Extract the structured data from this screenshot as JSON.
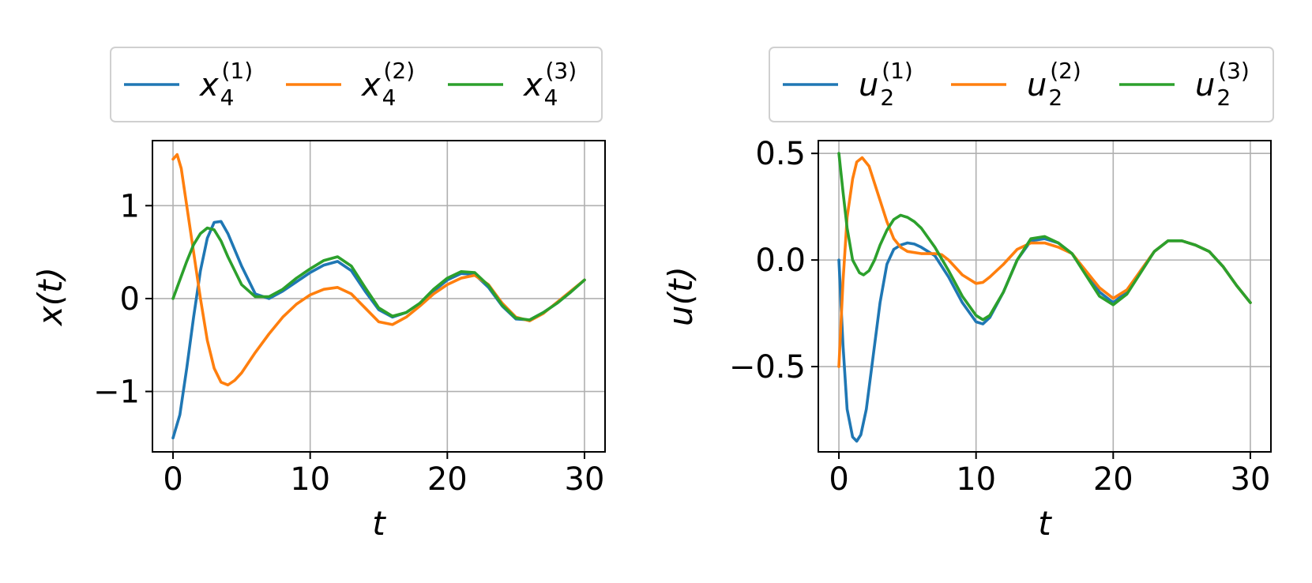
{
  "chart_data": [
    {
      "type": "line",
      "xlabel": "t",
      "ylabel": "x(t)",
      "xlim": [
        -1.5,
        31.5
      ],
      "ylim": [
        -1.65,
        1.7
      ],
      "xticks": [
        0,
        10,
        20,
        30
      ],
      "xtick_labels": [
        "0",
        "10",
        "20",
        "30"
      ],
      "yticks": [
        -1,
        0,
        1
      ],
      "ytick_labels": [
        "−1",
        "0",
        "1"
      ],
      "grid": true,
      "legend_placement": "top-center, outside",
      "legend_entries": [
        {
          "base": "x",
          "sub": "4",
          "sup": "(1)"
        },
        {
          "base": "x",
          "sub": "4",
          "sup": "(2)"
        },
        {
          "base": "x",
          "sub": "4",
          "sup": "(3)"
        }
      ],
      "series": [
        {
          "color": "#1f77b4",
          "x": [
            0,
            0.5,
            1,
            1.5,
            2,
            2.5,
            3,
            3.5,
            4,
            5,
            6,
            7,
            8,
            9,
            10,
            11,
            12,
            13,
            14,
            15,
            16,
            17,
            18,
            19,
            20,
            21,
            22,
            23,
            24,
            25,
            26,
            27,
            28,
            29,
            30
          ],
          "values": [
            -1.5,
            -1.25,
            -0.75,
            -0.2,
            0.3,
            0.65,
            0.82,
            0.83,
            0.7,
            0.35,
            0.05,
            0.0,
            0.08,
            0.18,
            0.28,
            0.36,
            0.4,
            0.3,
            0.08,
            -0.12,
            -0.2,
            -0.15,
            -0.05,
            0.08,
            0.2,
            0.27,
            0.26,
            0.12,
            -0.08,
            -0.22,
            -0.23,
            -0.15,
            -0.05,
            0.07,
            0.2
          ]
        },
        {
          "color": "#ff7f0e",
          "x": [
            0,
            0.3,
            0.6,
            1,
            1.5,
            2,
            2.5,
            3,
            3.5,
            4,
            4.5,
            5,
            6,
            7,
            8,
            9,
            10,
            11,
            12,
            13,
            14,
            15,
            16,
            17,
            18,
            19,
            20,
            21,
            22,
            23,
            24,
            25,
            26,
            27,
            28,
            29,
            30
          ],
          "values": [
            1.5,
            1.55,
            1.4,
            1.0,
            0.5,
            0.0,
            -0.45,
            -0.75,
            -0.9,
            -0.93,
            -0.88,
            -0.8,
            -0.58,
            -0.38,
            -0.2,
            -0.06,
            0.04,
            0.1,
            0.12,
            0.05,
            -0.1,
            -0.25,
            -0.28,
            -0.2,
            -0.08,
            0.05,
            0.15,
            0.22,
            0.25,
            0.15,
            -0.05,
            -0.2,
            -0.24,
            -0.16,
            -0.04,
            0.08,
            0.2
          ]
        },
        {
          "color": "#2ca02c",
          "x": [
            0,
            0.5,
            1,
            1.5,
            2,
            2.5,
            3,
            3.5,
            4,
            5,
            6,
            7,
            8,
            9,
            10,
            11,
            12,
            13,
            14,
            15,
            16,
            17,
            18,
            19,
            20,
            21,
            22,
            23,
            24,
            25,
            26,
            27,
            28,
            29,
            30
          ],
          "values": [
            0.0,
            0.2,
            0.4,
            0.58,
            0.7,
            0.76,
            0.74,
            0.62,
            0.45,
            0.15,
            0.02,
            0.02,
            0.1,
            0.22,
            0.32,
            0.41,
            0.45,
            0.35,
            0.12,
            -0.1,
            -0.19,
            -0.15,
            -0.05,
            0.1,
            0.22,
            0.29,
            0.28,
            0.14,
            -0.07,
            -0.21,
            -0.23,
            -0.15,
            -0.05,
            0.07,
            0.2
          ]
        }
      ]
    },
    {
      "type": "line",
      "xlabel": "t",
      "ylabel": "u(t)",
      "xlim": [
        -1.5,
        31.5
      ],
      "ylim": [
        -0.9,
        0.56
      ],
      "xticks": [
        0,
        10,
        20,
        30
      ],
      "xtick_labels": [
        "0",
        "10",
        "20",
        "30"
      ],
      "yticks": [
        -0.5,
        0.0,
        0.5
      ],
      "ytick_labels": [
        "−0.5",
        "0.0",
        "0.5"
      ],
      "grid": true,
      "legend_placement": "top-center, outside",
      "legend_entries": [
        {
          "base": "u",
          "sub": "2",
          "sup": "(1)"
        },
        {
          "base": "u",
          "sub": "2",
          "sup": "(2)"
        },
        {
          "base": "u",
          "sub": "2",
          "sup": "(3)"
        }
      ],
      "series": [
        {
          "color": "#1f77b4",
          "x": [
            0,
            0.3,
            0.6,
            1,
            1.3,
            1.6,
            2,
            2.5,
            3,
            3.5,
            4,
            4.5,
            5,
            5.5,
            6,
            7,
            8,
            9,
            10,
            10.5,
            11,
            12,
            13,
            14,
            15,
            16,
            17,
            18,
            19,
            20,
            21,
            22,
            23,
            24,
            25,
            26,
            27,
            28,
            29,
            30
          ],
          "values": [
            0.0,
            -0.4,
            -0.7,
            -0.83,
            -0.85,
            -0.82,
            -0.7,
            -0.45,
            -0.2,
            -0.02,
            0.05,
            0.07,
            0.08,
            0.075,
            0.06,
            0.02,
            -0.08,
            -0.2,
            -0.29,
            -0.3,
            -0.27,
            -0.15,
            0.0,
            0.09,
            0.1,
            0.08,
            0.03,
            -0.06,
            -0.15,
            -0.2,
            -0.15,
            -0.05,
            0.04,
            0.09,
            0.09,
            0.07,
            0.04,
            -0.03,
            -0.12,
            -0.2
          ]
        },
        {
          "color": "#ff7f0e",
          "x": [
            0,
            0.3,
            0.6,
            1,
            1.3,
            1.7,
            2.2,
            2.8,
            3.5,
            4,
            4.5,
            5,
            6,
            7,
            7.5,
            8,
            9,
            10,
            10.5,
            11,
            12,
            13,
            14,
            15,
            16,
            17,
            18,
            19,
            20,
            21,
            22,
            23,
            24,
            25,
            26,
            27,
            28,
            29,
            30
          ],
          "values": [
            -0.5,
            -0.1,
            0.2,
            0.38,
            0.46,
            0.48,
            0.44,
            0.32,
            0.18,
            0.1,
            0.06,
            0.04,
            0.03,
            0.03,
            0.025,
            0.0,
            -0.07,
            -0.11,
            -0.105,
            -0.08,
            -0.02,
            0.05,
            0.08,
            0.08,
            0.06,
            0.03,
            -0.05,
            -0.13,
            -0.18,
            -0.14,
            -0.05,
            0.04,
            0.09,
            0.09,
            0.07,
            0.04,
            -0.03,
            -0.12,
            -0.2
          ]
        },
        {
          "color": "#2ca02c",
          "x": [
            0,
            0.3,
            0.6,
            1,
            1.5,
            1.8,
            2.2,
            2.6,
            3,
            3.5,
            4,
            4.5,
            5,
            5.5,
            6,
            7,
            8,
            9,
            10,
            10.5,
            11,
            12,
            13,
            14,
            15,
            16,
            17,
            18,
            19,
            20,
            21,
            22,
            23,
            24,
            25,
            26,
            27,
            28,
            29,
            30
          ],
          "values": [
            0.5,
            0.32,
            0.15,
            0.0,
            -0.06,
            -0.07,
            -0.05,
            0.0,
            0.07,
            0.14,
            0.19,
            0.21,
            0.2,
            0.18,
            0.15,
            0.06,
            -0.05,
            -0.17,
            -0.26,
            -0.28,
            -0.26,
            -0.15,
            0.0,
            0.1,
            0.11,
            0.08,
            0.03,
            -0.07,
            -0.17,
            -0.21,
            -0.16,
            -0.06,
            0.04,
            0.09,
            0.09,
            0.07,
            0.04,
            -0.03,
            -0.12,
            -0.2
          ]
        }
      ]
    }
  ]
}
